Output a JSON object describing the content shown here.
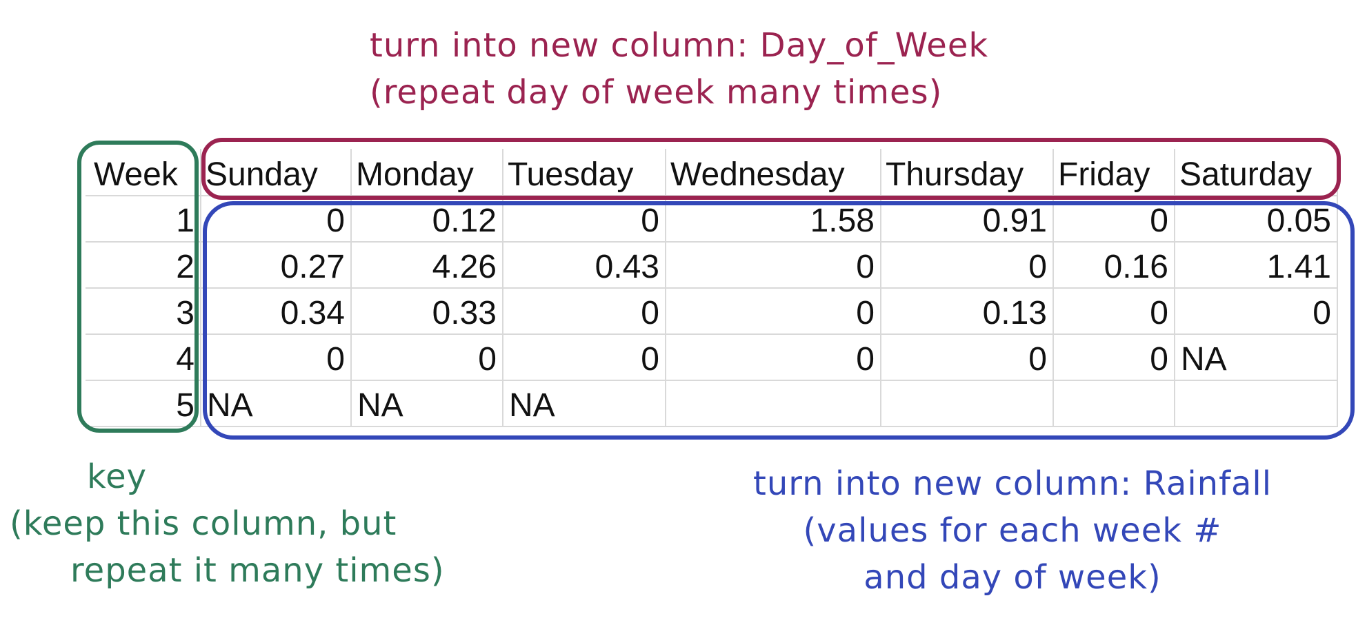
{
  "annotations": {
    "header_note": {
      "line1": "turn into new column: Day_of_Week",
      "line2": "(repeat day of week many times)"
    },
    "key_note": {
      "line1": "key",
      "line2": "(keep this column, but",
      "line3": "repeat it many times)"
    },
    "values_note": {
      "line1": "turn into new column: Rainfall",
      "line2": "(values for each week #",
      "line3": "and day of week)"
    }
  },
  "colors": {
    "header_highlight": "#9b2350",
    "key_highlight": "#2e7b5a",
    "values_highlight": "#3347b8",
    "grid": "#d9d9d9"
  },
  "table": {
    "headers": [
      "Week",
      "Sunday",
      "Monday",
      "Tuesday",
      "Wednesday",
      "Thursday",
      "Friday",
      "Saturday"
    ],
    "rows": [
      [
        "1",
        "0",
        "0.12",
        "0",
        "1.58",
        "0.91",
        "0",
        "0.05"
      ],
      [
        "2",
        "0.27",
        "4.26",
        "0.43",
        "0",
        "0",
        "0.16",
        "1.41"
      ],
      [
        "3",
        "0.34",
        "0.33",
        "0",
        "0",
        "0.13",
        "0",
        "0"
      ],
      [
        "4",
        "0",
        "0",
        "0",
        "0",
        "0",
        "0",
        "NA"
      ],
      [
        "5",
        "NA",
        "NA",
        "NA",
        "",
        "",
        "",
        ""
      ]
    ]
  }
}
